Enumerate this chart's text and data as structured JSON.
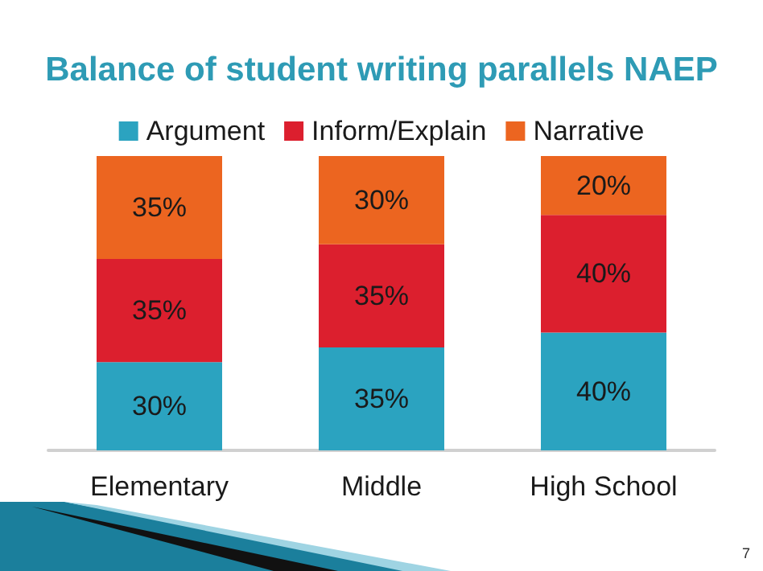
{
  "chart_data": {
    "type": "bar",
    "title": "Balance of student writing parallels NAEP",
    "categories": [
      "Elementary",
      "Middle",
      "High School"
    ],
    "stacked": true,
    "legend": "top",
    "tick_labels": "x",
    "series": [
      {
        "name": "Argument",
        "color": "#2ba3c0",
        "values": [
          30,
          35,
          40
        ],
        "value_labels": [
          "30%",
          "35%",
          "40%"
        ]
      },
      {
        "name": "Inform/Explain",
        "color": "#dc1f2e",
        "values": [
          35,
          35,
          40
        ],
        "value_labels": [
          "35%",
          "35%",
          "40%"
        ]
      },
      {
        "name": "Narrative",
        "color": "#ec6520",
        "values": [
          35,
          30,
          20
        ],
        "value_labels": [
          "35%",
          "30%",
          "20%"
        ]
      }
    ],
    "annotations": [
      "7"
    ]
  }
}
